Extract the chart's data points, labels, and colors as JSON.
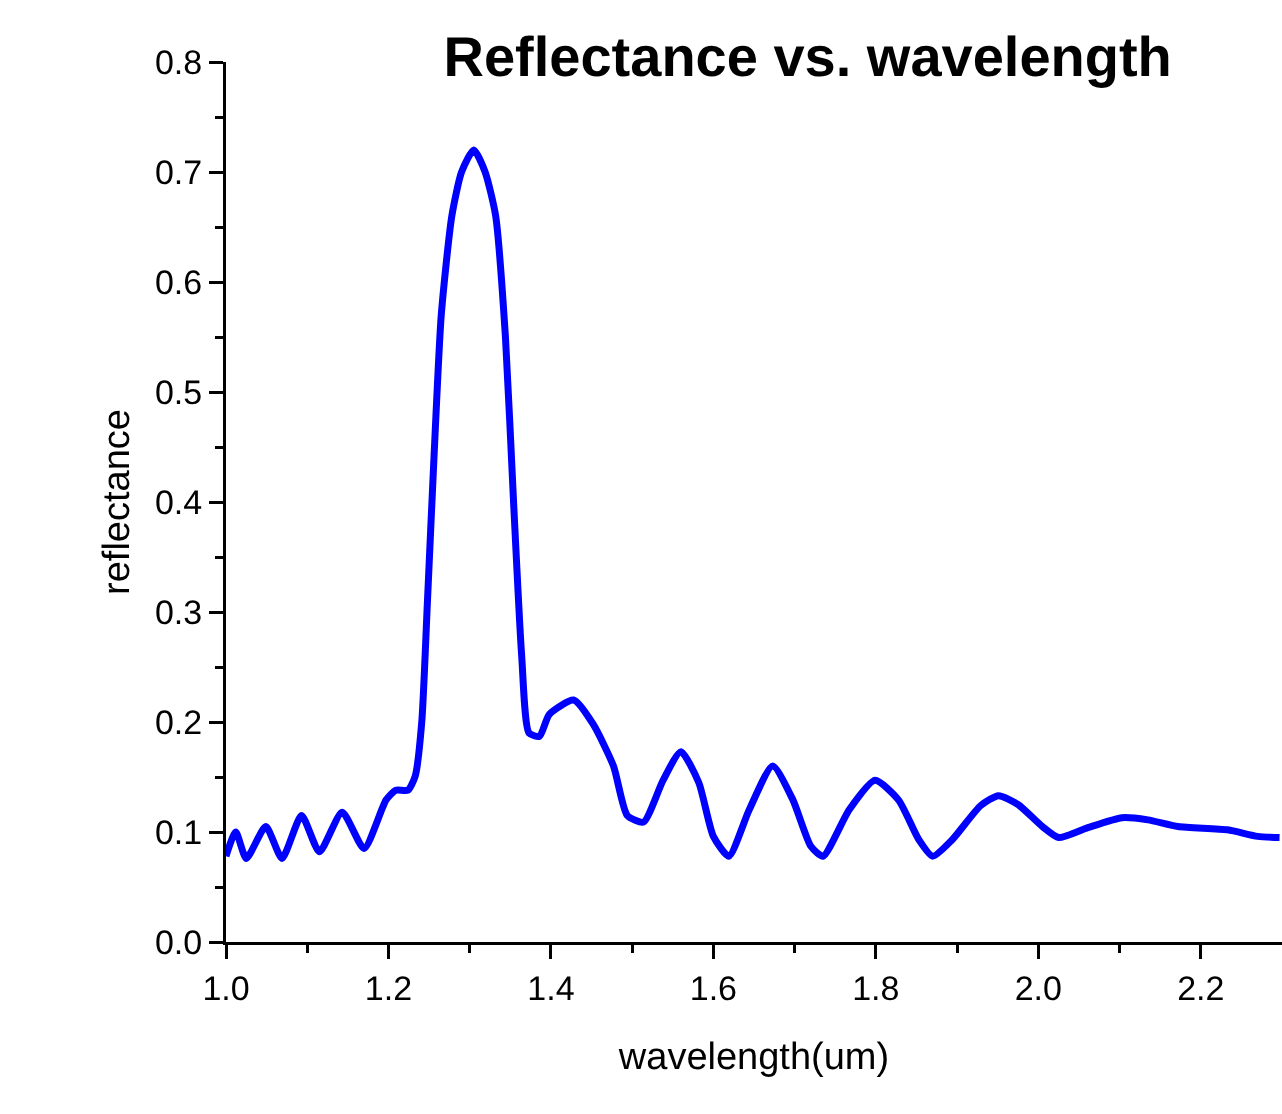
{
  "chart_data": {
    "type": "line",
    "title": "Reflectance vs. wavelength",
    "xlabel": "wavelength(um)",
    "ylabel": "reflectance",
    "xlim": [
      1.0,
      2.3
    ],
    "ylim": [
      0.0,
      0.8
    ],
    "xticks": [
      {
        "value": 1.0,
        "label": "1.0"
      },
      {
        "value": 1.1,
        "label": null
      },
      {
        "value": 1.2,
        "label": "1.2"
      },
      {
        "value": 1.3,
        "label": null
      },
      {
        "value": 1.4,
        "label": "1.4"
      },
      {
        "value": 1.5,
        "label": null
      },
      {
        "value": 1.6,
        "label": "1.6"
      },
      {
        "value": 1.7,
        "label": null
      },
      {
        "value": 1.8,
        "label": "1.8"
      },
      {
        "value": 1.9,
        "label": null
      },
      {
        "value": 2.0,
        "label": "2.0"
      },
      {
        "value": 2.1,
        "label": null
      },
      {
        "value": 2.2,
        "label": "2.2"
      }
    ],
    "yticks": [
      {
        "value": 0.0,
        "label": "0.0"
      },
      {
        "value": 0.05,
        "label": null
      },
      0.1,
      {
        "value": 0.15,
        "label": null
      },
      0.2,
      {
        "value": 0.25,
        "label": null
      },
      0.3,
      {
        "value": 0.35,
        "label": null
      },
      0.4,
      {
        "value": 0.45,
        "label": null
      },
      0.5,
      {
        "value": 0.55,
        "label": null
      },
      0.6,
      {
        "value": 0.65,
        "label": null
      },
      0.7,
      {
        "value": 0.75,
        "label": null
      },
      0.8
    ],
    "grid": false,
    "marker": "none",
    "line_style": "solid",
    "series": [
      {
        "color": "#0000ff",
        "x": [
          1.0,
          1.012,
          1.025,
          1.049,
          1.069,
          1.093,
          1.115,
          1.143,
          1.17,
          1.197,
          1.209,
          1.224,
          1.233,
          1.241,
          1.248,
          1.256,
          1.265,
          1.278,
          1.29,
          1.305,
          1.319,
          1.332,
          1.344,
          1.354,
          1.364,
          1.373,
          1.386,
          1.398,
          1.428,
          1.452,
          1.477,
          1.494,
          1.514,
          1.538,
          1.56,
          1.582,
          1.6,
          1.619,
          1.644,
          1.673,
          1.698,
          1.72,
          1.735,
          1.767,
          1.799,
          1.828,
          1.853,
          1.87,
          1.894,
          1.929,
          1.951,
          1.975,
          2.005,
          2.025,
          2.061,
          2.103,
          2.135,
          2.172,
          2.233,
          2.27,
          2.297
        ],
        "values": [
          0.078,
          0.1,
          0.076,
          0.105,
          0.076,
          0.115,
          0.082,
          0.118,
          0.085,
          0.129,
          0.138,
          0.138,
          0.151,
          0.2,
          0.31,
          0.44,
          0.57,
          0.66,
          0.7,
          0.72,
          0.7,
          0.66,
          0.55,
          0.4,
          0.26,
          0.19,
          0.187,
          0.207,
          0.22,
          0.198,
          0.16,
          0.115,
          0.109,
          0.147,
          0.173,
          0.145,
          0.096,
          0.078,
          0.12,
          0.16,
          0.129,
          0.087,
          0.078,
          0.12,
          0.147,
          0.129,
          0.093,
          0.078,
          0.093,
          0.124,
          0.133,
          0.125,
          0.105,
          0.095,
          0.104,
          0.113,
          0.111,
          0.105,
          0.102,
          0.096,
          0.095
        ]
      }
    ]
  }
}
